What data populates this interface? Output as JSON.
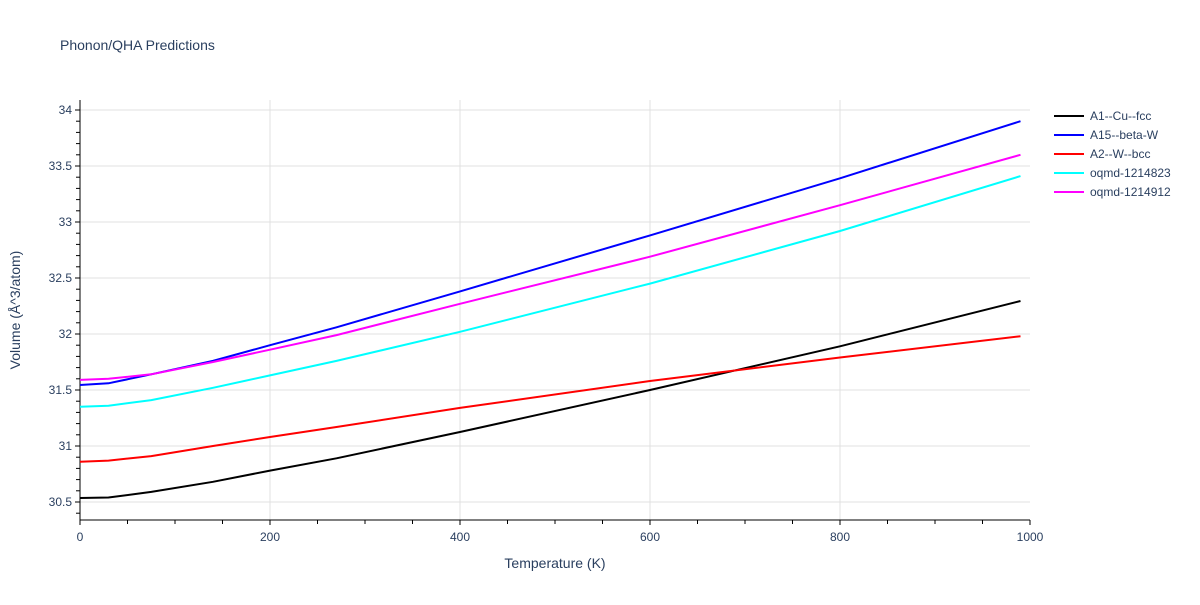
{
  "chart_data": {
    "type": "line",
    "title": "Phonon/QHA Predictions",
    "xlabel": "Temperature (K)",
    "ylabel": "Volume (Å^3/atom)",
    "xlim": [
      0,
      1000
    ],
    "ylim": [
      30.35,
      34.08
    ],
    "xticks": [
      0,
      200,
      400,
      600,
      800,
      1000
    ],
    "yticks": [
      30.5,
      31,
      31.5,
      32,
      32.5,
      33,
      33.5,
      34
    ],
    "ytick_labels": [
      "30.5",
      "31",
      "31.5",
      "32",
      "32.5",
      "33",
      "33.5",
      "34"
    ],
    "grid": true,
    "legend_position": "top-right",
    "series": [
      {
        "name": "A1--Cu--fcc",
        "color": "#000000",
        "x": [
          0,
          30,
          75,
          140,
          200,
          270,
          400,
          600,
          800,
          990
        ],
        "y": [
          30.536,
          30.54,
          30.59,
          30.68,
          30.78,
          30.89,
          31.125,
          31.5,
          31.89,
          32.295
        ]
      },
      {
        "name": "A15--beta-W",
        "color": "#0000ff",
        "x": [
          0,
          30,
          75,
          140,
          200,
          270,
          400,
          600,
          800,
          990
        ],
        "y": [
          31.545,
          31.56,
          31.64,
          31.76,
          31.9,
          32.06,
          32.38,
          32.88,
          33.39,
          33.9
        ]
      },
      {
        "name": "A2--W--bcc",
        "color": "#ff0000",
        "x": [
          0,
          30,
          75,
          140,
          200,
          270,
          400,
          600,
          800,
          990
        ],
        "y": [
          30.86,
          30.87,
          30.91,
          31.0,
          31.08,
          31.17,
          31.34,
          31.58,
          31.79,
          31.98
        ]
      },
      {
        "name": "oqmd-1214823",
        "color": "#00ffff",
        "x": [
          0,
          30,
          75,
          140,
          200,
          270,
          400,
          600,
          800,
          990
        ],
        "y": [
          31.35,
          31.36,
          31.41,
          31.52,
          31.63,
          31.76,
          32.02,
          32.45,
          32.92,
          33.41
        ]
      },
      {
        "name": "oqmd-1214912",
        "color": "#ff00ff",
        "x": [
          0,
          30,
          75,
          140,
          200,
          270,
          400,
          600,
          800,
          990
        ],
        "y": [
          31.59,
          31.6,
          31.64,
          31.75,
          31.86,
          31.99,
          32.27,
          32.69,
          33.15,
          33.6
        ]
      }
    ]
  }
}
